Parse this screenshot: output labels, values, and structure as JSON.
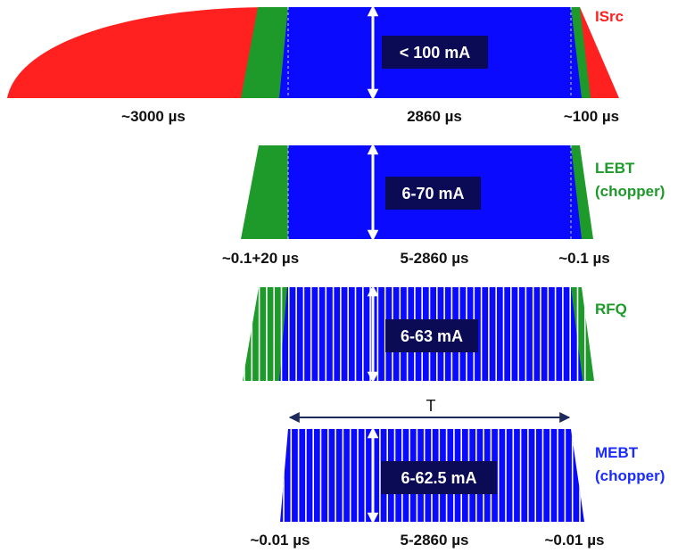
{
  "colors": {
    "isrc": "#ff2020",
    "lebt": "#1d9a2a",
    "blue": "#0a0aff",
    "label_box": "#0a0a55",
    "mebt_label": "#1a2cff",
    "stripe": "#ffffff",
    "arrow": "#ffffff",
    "dim_arrow": "#1e2a5a"
  },
  "stages": [
    {
      "name_lines": [
        "ISrc"
      ],
      "current": "< 100 mA",
      "times": {
        "left": "~3000 µs",
        "center": "2860 µs",
        "right": "~100 µs"
      }
    },
    {
      "name_lines": [
        "LEBT",
        "(chopper)"
      ],
      "current": "6-70 mA",
      "times": {
        "left": "~0.1+20 µs",
        "center": "5-2860 µs",
        "right": "~0.1 µs"
      }
    },
    {
      "name_lines": [
        "RFQ"
      ],
      "current": "6-63 mA",
      "times": {
        "left": "",
        "center": "",
        "right": ""
      }
    },
    {
      "name_lines": [
        "MEBT",
        "(chopper)"
      ],
      "current": "6-62.5 mA",
      "times": {
        "left": "~0.01 µs",
        "center": "5-2860 µs",
        "right": "~0.01 µs"
      },
      "period_label": "T"
    }
  ]
}
